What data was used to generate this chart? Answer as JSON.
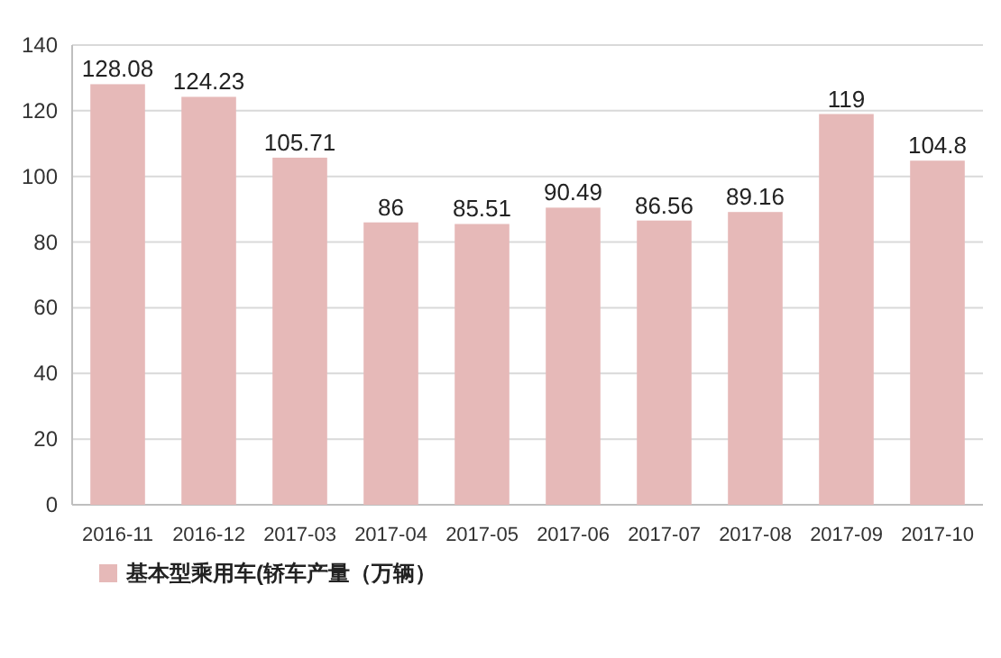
{
  "chart_data": {
    "type": "bar",
    "categories": [
      "2016-11",
      "2016-12",
      "2017-03",
      "2017-04",
      "2017-05",
      "2017-06",
      "2017-07",
      "2017-08",
      "2017-09",
      "2017-10"
    ],
    "series": [
      {
        "name": "基本型乘用车(轿车产量（万辆）",
        "color": "#e6b9b8",
        "values": [
          128.08,
          124.23,
          105.71,
          86,
          85.51,
          90.49,
          86.56,
          89.16,
          119,
          104.8
        ]
      }
    ],
    "ylim": [
      0,
      140
    ],
    "yticks": [
      0,
      20,
      40,
      60,
      80,
      100,
      120,
      140
    ],
    "grid": "y",
    "data_labels": true,
    "legend": "bottom"
  }
}
